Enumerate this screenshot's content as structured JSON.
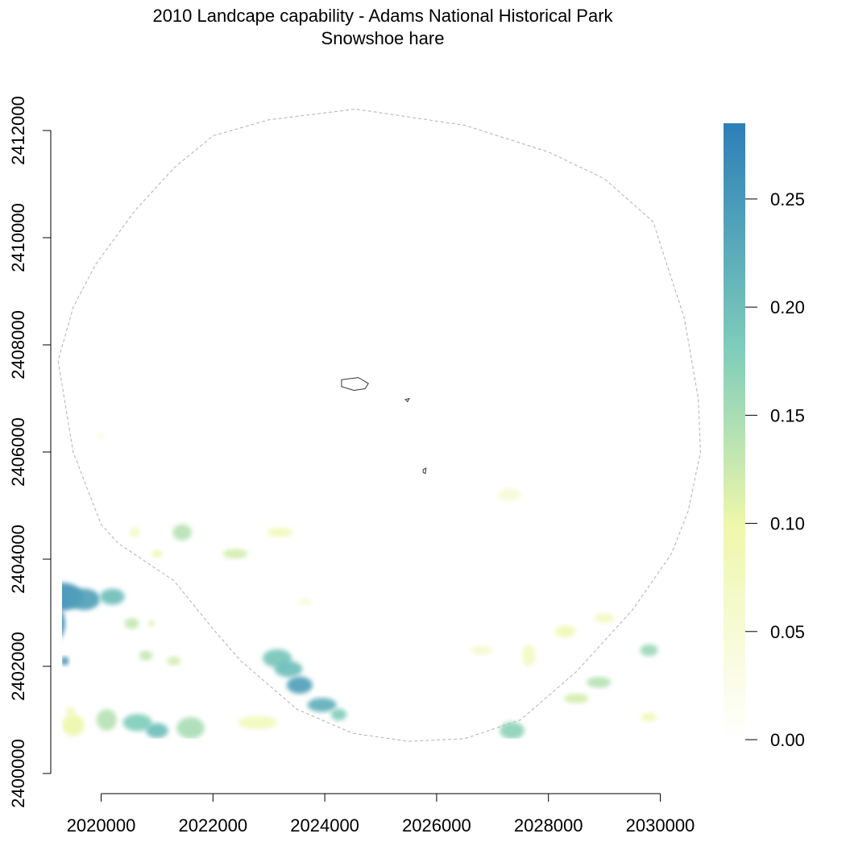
{
  "title": {
    "line1": "2010 Landcape capability - Adams National Historical Park",
    "line2": "Snowshoe hare"
  },
  "chart_data": {
    "type": "heatmap",
    "x_ticks": [
      2020000,
      2022000,
      2024000,
      2026000,
      2028000,
      2030000
    ],
    "y_ticks": [
      2400000,
      2402000,
      2404000,
      2406000,
      2408000,
      2410000,
      2412000
    ],
    "xlim": [
      2019200,
      2030800
    ],
    "ylim": [
      2400000,
      2412000
    ],
    "legend": {
      "placement": "right",
      "range": [
        0,
        0.285
      ],
      "ticks": [
        "0.00",
        "0.05",
        "0.10",
        "0.15",
        "0.20",
        "0.25"
      ],
      "tick_values": [
        0,
        0.05,
        0.1,
        0.15,
        0.2,
        0.25
      ],
      "color_stops": [
        {
          "value": 0.0,
          "color": "#ffffff"
        },
        {
          "value": 0.1,
          "color": "#eef7aa"
        },
        {
          "value": 0.18,
          "color": "#7fcdbb"
        },
        {
          "value": 0.285,
          "color": "#2c7fb8"
        }
      ]
    },
    "buffer_outline": {
      "style": "dashed",
      "color": "#b0b0b0",
      "points": [
        [
          2019230,
          2407700
        ],
        [
          2019500,
          2406000
        ],
        [
          2020000,
          2404650
        ],
        [
          2020300,
          2404300
        ],
        [
          2021300,
          2403600
        ],
        [
          2022000,
          2402700
        ],
        [
          2022500,
          2402100
        ],
        [
          2023500,
          2401200
        ],
        [
          2024500,
          2400750
        ],
        [
          2025500,
          2400600
        ],
        [
          2026500,
          2400650
        ],
        [
          2027500,
          2401000
        ],
        [
          2028500,
          2401900
        ],
        [
          2029500,
          2403050
        ],
        [
          2030200,
          2404100
        ],
        [
          2030500,
          2404900
        ],
        [
          2030720,
          2406000
        ],
        [
          2030680,
          2407000
        ],
        [
          2030430,
          2408500
        ],
        [
          2029870,
          2410300
        ],
        [
          2029000,
          2411100
        ],
        [
          2028000,
          2411600
        ],
        [
          2026500,
          2412100
        ],
        [
          2024550,
          2412400
        ],
        [
          2023000,
          2412200
        ],
        [
          2022000,
          2411900
        ],
        [
          2021300,
          2411300
        ],
        [
          2020600,
          2410500
        ],
        [
          2019900,
          2409500
        ],
        [
          2019500,
          2408700
        ]
      ]
    },
    "park_outlines": [
      {
        "color": "#333333",
        "points": [
          [
            2024300,
            2407350
          ],
          [
            2024600,
            2407390
          ],
          [
            2024780,
            2407280
          ],
          [
            2024720,
            2407180
          ],
          [
            2024520,
            2407150
          ],
          [
            2024300,
            2407220
          ]
        ]
      },
      {
        "color": "#333333",
        "points": [
          [
            2025440,
            2406980
          ],
          [
            2025510,
            2407000
          ],
          [
            2025480,
            2406940
          ]
        ]
      },
      {
        "color": "#333333",
        "points": [
          [
            2025760,
            2405670
          ],
          [
            2025810,
            2405700
          ],
          [
            2025800,
            2405600
          ],
          [
            2025760,
            2405620
          ]
        ]
      }
    ],
    "patches": [
      {
        "x": 2019300,
        "y": 2403300,
        "rx": 380,
        "ry": 260,
        "value": 0.26
      },
      {
        "x": 2019700,
        "y": 2403250,
        "rx": 280,
        "ry": 200,
        "value": 0.24
      },
      {
        "x": 2020200,
        "y": 2403300,
        "rx": 220,
        "ry": 150,
        "value": 0.2
      },
      {
        "x": 2019200,
        "y": 2402800,
        "rx": 150,
        "ry": 300,
        "value": 0.28
      },
      {
        "x": 2019350,
        "y": 2402100,
        "rx": 70,
        "ry": 80,
        "value": 0.27
      },
      {
        "x": 2020550,
        "y": 2402800,
        "rx": 130,
        "ry": 100,
        "value": 0.13
      },
      {
        "x": 2023150,
        "y": 2402150,
        "rx": 260,
        "ry": 170,
        "value": 0.19
      },
      {
        "x": 2023350,
        "y": 2401950,
        "rx": 250,
        "ry": 150,
        "value": 0.2
      },
      {
        "x": 2023550,
        "y": 2401650,
        "rx": 230,
        "ry": 160,
        "value": 0.24
      },
      {
        "x": 2023950,
        "y": 2401280,
        "rx": 260,
        "ry": 130,
        "value": 0.22
      },
      {
        "x": 2024250,
        "y": 2401100,
        "rx": 140,
        "ry": 110,
        "value": 0.18
      },
      {
        "x": 2020650,
        "y": 2400950,
        "rx": 260,
        "ry": 160,
        "value": 0.18
      },
      {
        "x": 2021000,
        "y": 2400800,
        "rx": 200,
        "ry": 140,
        "value": 0.2
      },
      {
        "x": 2020100,
        "y": 2401000,
        "rx": 180,
        "ry": 200,
        "value": 0.14
      },
      {
        "x": 2021600,
        "y": 2400850,
        "rx": 250,
        "ry": 200,
        "value": 0.15
      },
      {
        "x": 2019500,
        "y": 2400900,
        "rx": 200,
        "ry": 200,
        "value": 0.1
      },
      {
        "x": 2022800,
        "y": 2400950,
        "rx": 350,
        "ry": 120,
        "value": 0.08
      },
      {
        "x": 2027350,
        "y": 2400800,
        "rx": 220,
        "ry": 160,
        "value": 0.17
      },
      {
        "x": 2028500,
        "y": 2401400,
        "rx": 220,
        "ry": 90,
        "value": 0.12
      },
      {
        "x": 2028900,
        "y": 2401700,
        "rx": 220,
        "ry": 100,
        "value": 0.14
      },
      {
        "x": 2029800,
        "y": 2402300,
        "rx": 160,
        "ry": 110,
        "value": 0.16
      },
      {
        "x": 2029000,
        "y": 2402900,
        "rx": 180,
        "ry": 90,
        "value": 0.07
      },
      {
        "x": 2028300,
        "y": 2402650,
        "rx": 180,
        "ry": 110,
        "value": 0.09
      },
      {
        "x": 2026800,
        "y": 2402300,
        "rx": 200,
        "ry": 80,
        "value": 0.06
      },
      {
        "x": 2027650,
        "y": 2402200,
        "rx": 120,
        "ry": 200,
        "value": 0.07
      },
      {
        "x": 2027300,
        "y": 2405200,
        "rx": 200,
        "ry": 120,
        "value": 0.05
      },
      {
        "x": 2021450,
        "y": 2404500,
        "rx": 170,
        "ry": 150,
        "value": 0.14
      },
      {
        "x": 2022400,
        "y": 2404100,
        "rx": 220,
        "ry": 90,
        "value": 0.12
      },
      {
        "x": 2023200,
        "y": 2404500,
        "rx": 230,
        "ry": 80,
        "value": 0.09
      },
      {
        "x": 2020600,
        "y": 2404500,
        "rx": 90,
        "ry": 90,
        "value": 0.07
      },
      {
        "x": 2021000,
        "y": 2404100,
        "rx": 90,
        "ry": 70,
        "value": 0.1
      },
      {
        "x": 2020800,
        "y": 2402200,
        "rx": 120,
        "ry": 90,
        "value": 0.13
      },
      {
        "x": 2021300,
        "y": 2402100,
        "rx": 120,
        "ry": 80,
        "value": 0.12
      },
      {
        "x": 2020900,
        "y": 2402800,
        "rx": 60,
        "ry": 60,
        "value": 0.11
      },
      {
        "x": 2019450,
        "y": 2401150,
        "rx": 80,
        "ry": 90,
        "value": 0.08
      },
      {
        "x": 2023650,
        "y": 2403200,
        "rx": 120,
        "ry": 60,
        "value": 0.05
      },
      {
        "x": 2029800,
        "y": 2401050,
        "rx": 140,
        "ry": 80,
        "value": 0.09
      },
      {
        "x": 2020000,
        "y": 2406300,
        "rx": 70,
        "ry": 60,
        "value": 0.04
      }
    ]
  }
}
